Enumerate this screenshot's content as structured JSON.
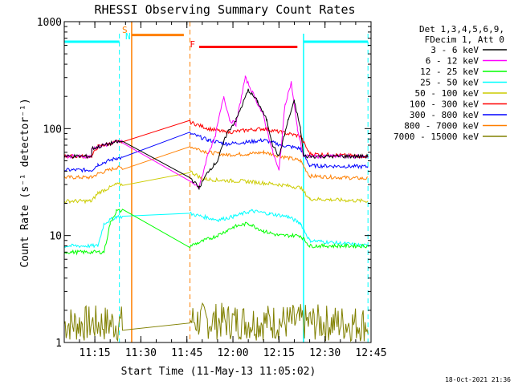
{
  "chart_data": {
    "type": "line",
    "title": "RHESSI Observing Summary Count Rates",
    "xlabel": "Start Time (11-May-13 11:05:02)",
    "ylabel": "Count Rate (s⁻¹ detector⁻¹)",
    "y_scale": "log",
    "ylim": [
      1,
      1000
    ],
    "xlim": [
      "11:05:02",
      "12:45:00"
    ],
    "x_ticks": [
      "11:15",
      "11:30",
      "11:45",
      "12:00",
      "12:15",
      "12:30",
      "12:45"
    ],
    "y_ticks": [
      "1",
      "10",
      "100",
      "1000"
    ],
    "legend_header": [
      "Det 1,3,4,5,6,9,",
      "FDecim 1, Att 0"
    ],
    "legend_position": "right",
    "footer_timestamp": "18-Oct-2021 21:36",
    "annotations": [
      {
        "label": "S",
        "color": "#ff7f00",
        "time": "11:27"
      },
      {
        "label": "N",
        "color": "#00ffff",
        "time": "11:27"
      },
      {
        "label": "F",
        "color": "#ff0000",
        "time": "11:47"
      }
    ],
    "status_bars": [
      {
        "name": "night",
        "color": "#00ffff",
        "start": "11:05",
        "end": "11:23",
        "value": 650
      },
      {
        "name": "saa",
        "color": "#ff7f00",
        "start": "11:27",
        "end": "11:44",
        "value": 750
      },
      {
        "name": "flare",
        "color": "#ff0000",
        "start": "11:49",
        "end": "12:21",
        "value": 580
      },
      {
        "name": "night",
        "color": "#00ffff",
        "start": "12:23",
        "end": "12:44",
        "value": 650
      }
    ],
    "gaps": [
      {
        "start": "11:27",
        "end": "11:46",
        "edge_colors": [
          "#ff7f00",
          "#ff7f00"
        ]
      },
      {
        "start": "11:05",
        "end": "11:05",
        "edge_colors": [
          "#00ffff",
          "#00ffff"
        ]
      }
    ],
    "series": [
      {
        "name": "3 - 6 keV",
        "color": "#000000",
        "points": [
          [
            "11:05",
            55
          ],
          [
            "11:14",
            55
          ],
          [
            "11:14",
            65
          ],
          [
            "11:22",
            75
          ],
          [
            "11:24",
            75
          ],
          [
            "11:46",
            35
          ],
          [
            "11:49",
            28
          ],
          [
            "11:52",
            40
          ],
          [
            "11:55",
            50
          ],
          [
            "11:58",
            90
          ],
          [
            "12:01",
            120
          ],
          [
            "12:05",
            230
          ],
          [
            "12:08",
            180
          ],
          [
            "12:11",
            120
          ],
          [
            "12:13",
            70
          ],
          [
            "12:15",
            55
          ],
          [
            "12:18",
            120
          ],
          [
            "12:20",
            180
          ],
          [
            "12:22",
            100
          ],
          [
            "12:23",
            55
          ],
          [
            "12:30",
            55
          ],
          [
            "12:44",
            55
          ]
        ]
      },
      {
        "name": "6 - 12 keV",
        "color": "#ff00ff",
        "points": [
          [
            "11:05",
            55
          ],
          [
            "11:14",
            55
          ],
          [
            "11:14",
            65
          ],
          [
            "11:22",
            75
          ],
          [
            "11:24",
            75
          ],
          [
            "11:46",
            32
          ],
          [
            "11:49",
            28
          ],
          [
            "11:52",
            60
          ],
          [
            "11:54",
            80
          ],
          [
            "11:57",
            200
          ],
          [
            "11:59",
            120
          ],
          [
            "12:01",
            110
          ],
          [
            "12:04",
            300
          ],
          [
            "12:07",
            200
          ],
          [
            "12:10",
            130
          ],
          [
            "12:13",
            60
          ],
          [
            "12:15",
            40
          ],
          [
            "12:17",
            170
          ],
          [
            "12:19",
            270
          ],
          [
            "12:21",
            100
          ],
          [
            "12:23",
            55
          ],
          [
            "12:30",
            55
          ],
          [
            "12:44",
            55
          ]
        ]
      },
      {
        "name": "12 - 25 keV",
        "color": "#00ff00",
        "points": [
          [
            "11:05",
            7
          ],
          [
            "11:18",
            7
          ],
          [
            "11:20",
            13
          ],
          [
            "11:22",
            17
          ],
          [
            "11:24",
            17
          ],
          [
            "11:46",
            8
          ],
          [
            "11:55",
            10
          ],
          [
            "12:00",
            12
          ],
          [
            "12:05",
            13
          ],
          [
            "12:10",
            11
          ],
          [
            "12:15",
            10
          ],
          [
            "12:22",
            10
          ],
          [
            "12:25",
            8
          ],
          [
            "12:44",
            8
          ]
        ]
      },
      {
        "name": "25 - 50 keV",
        "color": "#00ffff",
        "points": [
          [
            "11:05",
            8
          ],
          [
            "11:16",
            8
          ],
          [
            "11:18",
            13
          ],
          [
            "11:22",
            15
          ],
          [
            "11:24",
            15
          ],
          [
            "11:46",
            16
          ],
          [
            "11:55",
            14
          ],
          [
            "12:00",
            15
          ],
          [
            "12:06",
            17
          ],
          [
            "12:12",
            16
          ],
          [
            "12:18",
            15
          ],
          [
            "12:22",
            13
          ],
          [
            "12:25",
            9
          ],
          [
            "12:44",
            8
          ]
        ]
      },
      {
        "name": "50 - 100 keV",
        "color": "#cccc00",
        "points": [
          [
            "11:05",
            21
          ],
          [
            "11:14",
            21
          ],
          [
            "11:16",
            25
          ],
          [
            "11:22",
            30
          ],
          [
            "11:24",
            30
          ],
          [
            "11:46",
            40
          ],
          [
            "11:50",
            34
          ],
          [
            "11:55",
            33
          ],
          [
            "12:05",
            32
          ],
          [
            "12:15",
            30
          ],
          [
            "12:22",
            28
          ],
          [
            "12:25",
            22
          ],
          [
            "12:44",
            21
          ]
        ]
      },
      {
        "name": "100 - 300 keV",
        "color": "#ff0000",
        "points": [
          [
            "11:05",
            55
          ],
          [
            "11:14",
            55
          ],
          [
            "11:16",
            68
          ],
          [
            "11:22",
            75
          ],
          [
            "11:24",
            75
          ],
          [
            "11:46",
            115
          ],
          [
            "11:52",
            100
          ],
          [
            "11:58",
            92
          ],
          [
            "12:05",
            97
          ],
          [
            "12:10",
            100
          ],
          [
            "12:16",
            92
          ],
          [
            "12:22",
            85
          ],
          [
            "12:25",
            58
          ],
          [
            "12:44",
            55
          ]
        ]
      },
      {
        "name": "300 - 800 keV",
        "color": "#0000ff",
        "points": [
          [
            "11:05",
            41
          ],
          [
            "11:14",
            41
          ],
          [
            "11:16",
            46
          ],
          [
            "11:22",
            53
          ],
          [
            "11:24",
            53
          ],
          [
            "11:46",
            90
          ],
          [
            "11:52",
            78
          ],
          [
            "11:58",
            72
          ],
          [
            "12:05",
            75
          ],
          [
            "12:10",
            78
          ],
          [
            "12:16",
            70
          ],
          [
            "12:22",
            65
          ],
          [
            "12:25",
            45
          ],
          [
            "12:44",
            44
          ]
        ]
      },
      {
        "name": "800 - 7000 keV",
        "color": "#ff7f00",
        "points": [
          [
            "11:05",
            35
          ],
          [
            "11:14",
            35
          ],
          [
            "11:16",
            38
          ],
          [
            "11:22",
            43
          ],
          [
            "11:24",
            43
          ],
          [
            "11:46",
            68
          ],
          [
            "11:52",
            60
          ],
          [
            "11:58",
            57
          ],
          [
            "12:05",
            58
          ],
          [
            "12:10",
            60
          ],
          [
            "12:16",
            55
          ],
          [
            "12:22",
            50
          ],
          [
            "12:25",
            36
          ],
          [
            "12:44",
            34
          ]
        ]
      },
      {
        "name": "7000 - 15000 keV",
        "color": "#808000",
        "points": [
          [
            "11:05",
            1.5
          ],
          [
            "11:24",
            1.5
          ],
          [
            "11:46",
            1.6
          ],
          [
            "12:44",
            1.5
          ]
        ]
      }
    ]
  }
}
